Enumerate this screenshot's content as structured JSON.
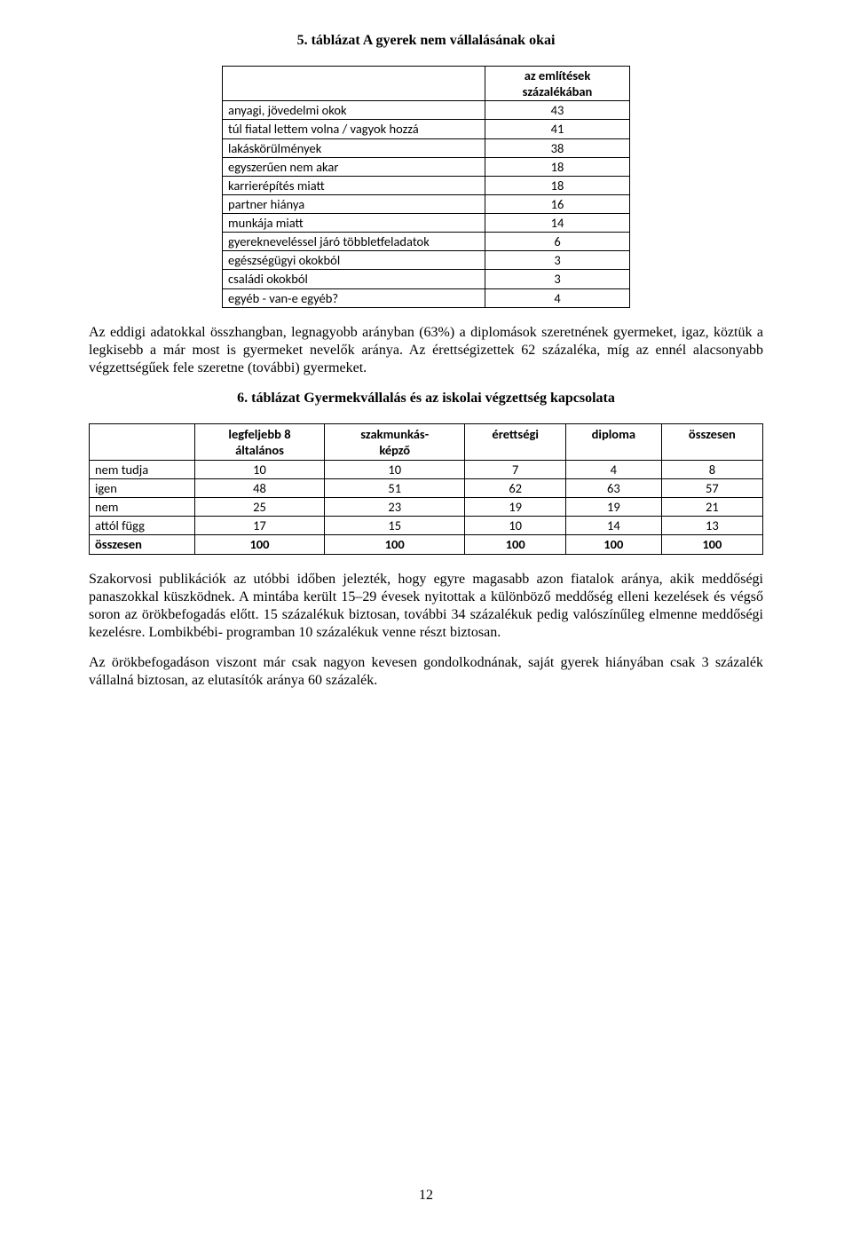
{
  "heading1": "5. táblázat  A gyerek nem vállalásának okai",
  "table1": {
    "header": "az említések százalékában",
    "rows": [
      {
        "label": "anyagi, jövedelmi okok",
        "value": "43"
      },
      {
        "label": "túl fiatal lettem volna / vagyok hozzá",
        "value": "41"
      },
      {
        "label": "lakáskörülmények",
        "value": "38"
      },
      {
        "label": "egyszerűen nem akar",
        "value": "18"
      },
      {
        "label": "karrierépítés miatt",
        "value": "18"
      },
      {
        "label": "partner hiánya",
        "value": "16"
      },
      {
        "label": "munkája miatt",
        "value": "14"
      },
      {
        "label": "gyerekneveléssel járó többletfeladatok",
        "value": "6"
      },
      {
        "label": "egészségügyi okokból",
        "value": "3"
      },
      {
        "label": "családi okokból",
        "value": "3"
      },
      {
        "label": "egyéb - van-e egyéb?",
        "value": "4"
      }
    ]
  },
  "para1": "Az eddigi adatokkal összhangban, legnagyobb arányban (63%) a diplomások szeretnének gyermeket, igaz, köztük a legkisebb a már most is gyermeket nevelők aránya. Az érettségizettek 62 százaléka, míg az ennél alacsonyabb végzettségűek fele szeretne (további) gyermeket.",
  "heading2": "6. táblázat  Gyermekvállalás és az iskolai végzettség kapcsolata",
  "table2": {
    "columns": [
      "",
      "legfeljebb 8 általános",
      "szakmunkás-képző",
      "érettségi",
      "diploma",
      "összesen"
    ],
    "rows": [
      [
        "nem tudja",
        "10",
        "10",
        "7",
        "4",
        "8"
      ],
      [
        "igen",
        "48",
        "51",
        "62",
        "63",
        "57"
      ],
      [
        "nem",
        "25",
        "23",
        "19",
        "19",
        "21"
      ],
      [
        "attól függ",
        "17",
        "15",
        "10",
        "14",
        "13"
      ]
    ],
    "total": [
      "összesen",
      "100",
      "100",
      "100",
      "100",
      "100"
    ]
  },
  "para2": "Szakorvosi publikációk az utóbbi időben jelezték, hogy egyre magasabb azon fiatalok aránya, akik meddőségi panaszokkal küszködnek. A mintába került 15–29 évesek nyitottak a különböző meddőség elleni kezelések és végső soron az örökbefogadás előtt. 15 százalékuk biztosan, további 34 százalékuk pedig valószínűleg elmenne meddőségi kezelésre. Lombikbébi- programban 10 százalékuk venne részt biztosan.",
  "para3": "Az örökbefogadáson viszont már csak nagyon kevesen gondolkodnának, saját gyerek hiányában csak 3 százalék vállalná biztosan, az elutasítók aránya 60 százalék.",
  "pageNumber": "12"
}
